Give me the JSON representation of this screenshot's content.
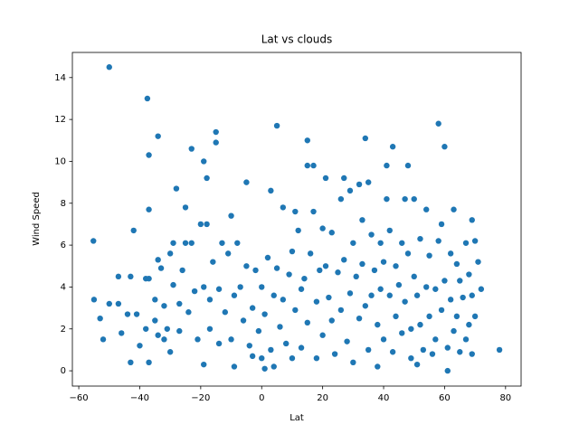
{
  "chart_data": {
    "type": "scatter",
    "title": "Lat vs clouds",
    "x_label": "Lat",
    "y_label": "Wind Speed",
    "color": "#1f77b4",
    "xlim": [
      -62.1,
      85.1
    ],
    "ylim": [
      -0.73,
      15.2
    ],
    "xticks": [
      {
        "value": -60,
        "label": "−60"
      },
      {
        "value": -40,
        "label": "−40"
      },
      {
        "value": -20,
        "label": "−20"
      },
      0,
      20,
      40,
      60,
      80
    ],
    "yticks": [
      0,
      2,
      4,
      6,
      8,
      10,
      12,
      14
    ],
    "x": [
      -55.2,
      -55,
      -53,
      -52,
      -50,
      -50,
      -47,
      -47,
      -46,
      -44,
      -43,
      -43,
      -42,
      -41,
      -40,
      -38,
      -38,
      -37.5,
      -37,
      -37,
      -37,
      -37,
      -35,
      -35,
      -34,
      -34,
      -34,
      -33,
      -32,
      -32,
      -31,
      -30,
      -30,
      -29,
      -29,
      -28,
      -27,
      -27,
      -26,
      -25,
      -25,
      -24,
      -23,
      -23,
      -22,
      -21,
      -20,
      -19,
      -19,
      -19,
      -18,
      -18,
      -17,
      -17,
      -16,
      -15,
      -15,
      -14,
      -14,
      -13,
      -12,
      -11,
      -10,
      -10,
      -9,
      -9,
      -8,
      -7,
      -6,
      -5,
      -5,
      -4,
      -3,
      -3,
      -2,
      -1,
      0,
      0,
      1,
      1,
      2,
      3,
      3,
      4,
      4,
      5,
      5,
      6,
      7,
      7,
      8,
      9,
      10,
      10,
      11,
      11,
      12,
      13,
      13,
      14,
      15,
      15,
      15,
      16,
      17,
      17,
      18,
      18,
      19,
      20,
      20,
      21,
      21,
      22,
      23,
      23,
      24,
      25,
      26,
      26,
      27,
      27,
      28,
      29,
      29,
      30,
      30,
      31,
      32,
      32,
      33,
      33,
      34,
      34,
      35,
      35,
      36,
      36,
      37,
      38,
      38,
      39,
      39,
      40,
      40,
      41,
      41,
      42,
      42,
      43,
      43,
      44,
      44,
      45,
      46,
      46,
      47,
      47,
      48,
      48,
      49,
      49,
      50,
      50,
      51,
      51,
      52,
      52,
      53,
      54,
      54,
      55,
      55,
      56,
      57,
      57,
      58,
      58,
      59,
      59,
      60,
      60,
      61,
      61,
      62,
      62,
      63,
      63,
      64,
      64,
      65,
      65,
      66,
      67,
      67,
      68,
      68,
      69,
      69,
      69,
      70,
      70,
      71,
      72,
      78
    ],
    "values": [
      6.2,
      3.4,
      2.5,
      1.5,
      14.5,
      3.2,
      4.5,
      3.2,
      1.8,
      2.7,
      0.4,
      4.5,
      6.7,
      2.7,
      1.2,
      4.4,
      2.0,
      13.0,
      10.3,
      7.7,
      4.4,
      0.4,
      3.4,
      2.4,
      11.2,
      5.3,
      1.7,
      4.9,
      3.1,
      1.5,
      2.0,
      5.6,
      0.9,
      6.1,
      4.1,
      8.7,
      3.2,
      1.9,
      4.8,
      7.8,
      6.1,
      2.8,
      10.6,
      6.1,
      3.8,
      1.5,
      7.0,
      10.0,
      4.0,
      0.3,
      9.2,
      7.0,
      3.4,
      2.0,
      5.2,
      11.4,
      10.9,
      3.9,
      1.3,
      6.1,
      2.8,
      5.6,
      7.4,
      1.5,
      3.6,
      0.2,
      6.1,
      4.0,
      2.4,
      9.0,
      5.0,
      1.2,
      3.0,
      0.7,
      4.8,
      1.9,
      0.6,
      4.0,
      2.7,
      0.1,
      5.4,
      8.6,
      1.0,
      3.6,
      0.2,
      11.7,
      4.9,
      2.1,
      7.8,
      3.4,
      1.3,
      4.6,
      5.7,
      0.6,
      7.6,
      2.9,
      6.7,
      3.9,
      1.1,
      4.4,
      11.0,
      9.8,
      2.3,
      5.6,
      9.8,
      7.6,
      3.3,
      0.6,
      4.8,
      6.8,
      1.7,
      9.2,
      5.0,
      3.5,
      2.4,
      6.6,
      0.8,
      4.7,
      8.2,
      2.9,
      9.2,
      5.3,
      1.4,
      8.6,
      3.7,
      6.1,
      0.4,
      4.5,
      8.9,
      2.5,
      7.2,
      5.1,
      11.1,
      3.1,
      9.0,
      1.0,
      6.5,
      3.6,
      4.8,
      0.2,
      2.2,
      6.1,
      3.9,
      5.2,
      1.5,
      8.2,
      9.8,
      3.6,
      6.7,
      10.7,
      0.9,
      5.0,
      2.6,
      4.1,
      6.1,
      1.8,
      8.2,
      3.3,
      9.8,
      5.6,
      2.0,
      0.6,
      4.5,
      8.2,
      0.3,
      3.6,
      6.3,
      2.2,
      1.0,
      4.0,
      7.7,
      5.5,
      2.6,
      0.8,
      3.9,
      1.5,
      11.8,
      6.2,
      7.0,
      2.9,
      10.7,
      4.3,
      1.1,
      0.0,
      5.6,
      3.4,
      7.7,
      1.9,
      5.1,
      2.6,
      4.3,
      0.9,
      3.5,
      1.5,
      6.1,
      4.6,
      2.2,
      7.2,
      3.6,
      0.8,
      6.2,
      2.6,
      5.2,
      3.9,
      1.0
    ]
  }
}
